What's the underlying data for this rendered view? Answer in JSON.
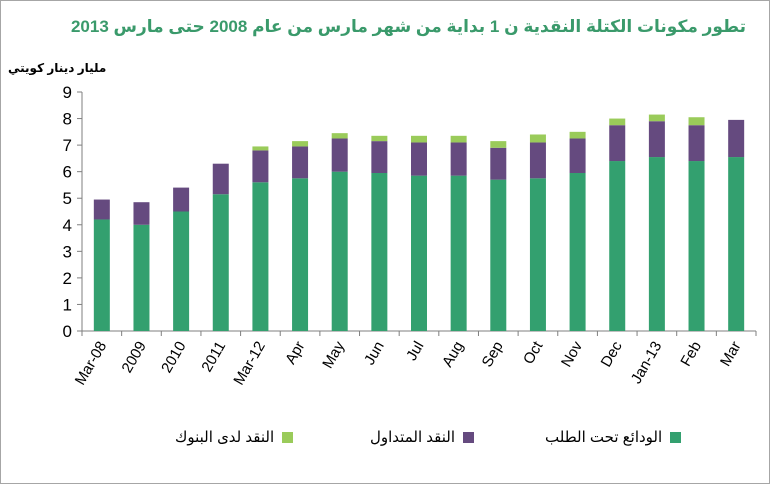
{
  "chart_data": {
    "type": "bar",
    "stacked": true,
    "title": "تطور مكونات الكتلة النقدية ن 1 بداية من شهر مارس من عام 2008 حتى مارس 2013",
    "ylabel": "مليار دينار كويتي",
    "xlabel": "",
    "ylim": [
      0,
      9
    ],
    "yticks": [
      0,
      1,
      2,
      3,
      4,
      5,
      6,
      7,
      8,
      9
    ],
    "grid": false,
    "legend_position": "bottom",
    "categories": [
      "Mar-08",
      "2009",
      "2010",
      "2011",
      "Mar-12",
      "Apr",
      "May",
      "Jun",
      "Jul",
      "Aug",
      "Sep",
      "Oct",
      "Nov",
      "Dec",
      "Jan-13",
      "Feb",
      "Mar"
    ],
    "series": [
      {
        "name": "الودائع تحت الطلب",
        "color": "#33a06f",
        "values": [
          4.2,
          4.0,
          4.5,
          5.15,
          5.6,
          5.75,
          6.0,
          5.95,
          5.85,
          5.85,
          5.7,
          5.75,
          5.95,
          6.4,
          6.55,
          6.4,
          6.55
        ]
      },
      {
        "name": "النقد المتداول",
        "color": "#654a7f",
        "values": [
          0.75,
          0.85,
          0.9,
          1.15,
          1.2,
          1.2,
          1.25,
          1.2,
          1.25,
          1.25,
          1.2,
          1.35,
          1.3,
          1.35,
          1.35,
          1.35,
          1.4
        ]
      },
      {
        "name": "النقد لدى البنوك",
        "color": "#9acb5a",
        "values": [
          0,
          0,
          0,
          0,
          0.15,
          0.2,
          0.2,
          0.2,
          0.25,
          0.25,
          0.25,
          0.3,
          0.25,
          0.25,
          0.25,
          0.3,
          0
        ]
      }
    ]
  }
}
